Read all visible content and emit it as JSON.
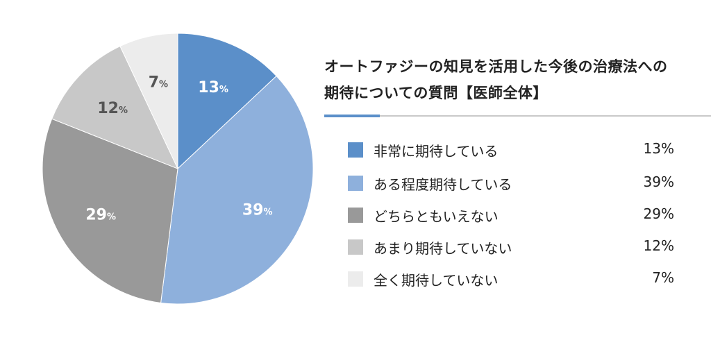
{
  "title_line1": "オートファジーの知見を活用した今後の治療法への",
  "title_line2": "期待についての質問【医師全体】",
  "legend": [
    {
      "label": "非常に期待している",
      "value": "13%",
      "color": "#5b8fc9"
    },
    {
      "label": "ある程度期待している",
      "value": "39%",
      "color": "#8eb0dc"
    },
    {
      "label": "どちらともいえない",
      "value": "29%",
      "color": "#999999"
    },
    {
      "label": "あまり期待していない",
      "value": "12%",
      "color": "#c8c8c8"
    },
    {
      "label": "全く期待していない",
      "value": "7%",
      "color": "#ececec"
    }
  ],
  "chart_data": {
    "type": "pie",
    "categories": [
      "非常に期待している",
      "ある程度期待している",
      "どちらともいえない",
      "あまり期待していない",
      "全く期待していない"
    ],
    "values": [
      13,
      39,
      29,
      12,
      7
    ],
    "colors": [
      "#5b8fc9",
      "#8eb0dc",
      "#999999",
      "#c8c8c8",
      "#ececec"
    ],
    "label_colors": [
      "#ffffff",
      "#ffffff",
      "#ffffff",
      "#555555",
      "#555555"
    ],
    "value_labels": [
      "13",
      "39",
      "29",
      "12",
      "7"
    ],
    "unit": "%",
    "start": "top",
    "direction": "clockwise"
  }
}
